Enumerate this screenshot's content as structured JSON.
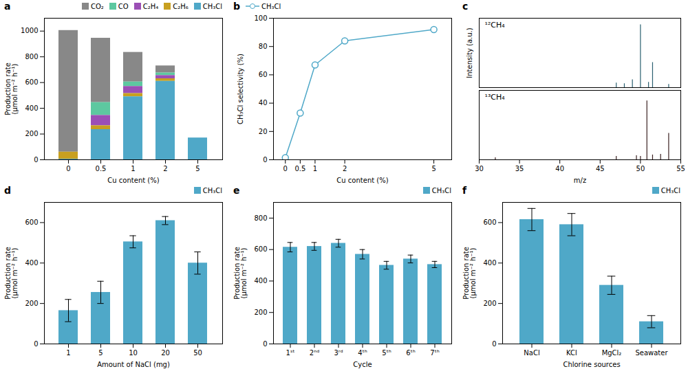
{
  "chart_data": [
    {
      "type": "bar",
      "stacked": true,
      "title": "a",
      "xlabel": "Cu content (%)",
      "ylabel": "Production rate\n(μmol m⁻² h⁻¹)",
      "categories": [
        "0",
        "0.5",
        "1",
        "2",
        "5"
      ],
      "series": [
        {
          "name": "CO₂",
          "color": "#888888",
          "values": [
            945,
            500,
            230,
            55,
            0
          ]
        },
        {
          "name": "CO",
          "color": "#5DC8A0",
          "values": [
            0,
            100,
            35,
            20,
            0
          ]
        },
        {
          "name": "C₂H₄",
          "color": "#9B4FB5",
          "values": [
            0,
            80,
            55,
            25,
            0
          ]
        },
        {
          "name": "C₂H₆",
          "color": "#C8A020",
          "values": [
            55,
            30,
            25,
            20,
            0
          ]
        },
        {
          "name": "CH₃Cl",
          "color": "#4FA8C8",
          "values": [
            5,
            235,
            490,
            610,
            170
          ]
        }
      ],
      "ylim": [
        0,
        1100
      ],
      "yticks": [
        0,
        200,
        400,
        600,
        800,
        1000
      ],
      "legend": "upper right"
    },
    {
      "type": "line",
      "title": "b",
      "xlabel": "Cu content (%)",
      "ylabel": "CH₃Cl selectivity (%)",
      "x": [
        0,
        0.5,
        1,
        2,
        5
      ],
      "series": [
        {
          "name": "CH₃Cl",
          "color": "#4FA8C8",
          "marker": "circle",
          "values": [
            1.5,
            33,
            67,
            84,
            92
          ]
        }
      ],
      "xlim": [
        -0.4,
        5.6
      ],
      "xticks": [
        0,
        0.5,
        1,
        2,
        5
      ],
      "ylim": [
        0,
        100
      ],
      "yticks": [
        0,
        20,
        40,
        60,
        80,
        100
      ],
      "legend": "upper left"
    },
    {
      "type": "stem",
      "title": "c",
      "ylabel": "Intensity (a.u.)",
      "x": [
        47.0,
        48.0,
        49.0,
        50.0,
        51.0,
        51.5,
        53.5
      ],
      "values": [
        0.07,
        0.06,
        0.12,
        0.95,
        0.08,
        0.38,
        0.05
      ],
      "color": "#2A6070",
      "annotations": [
        "¹²CH₄"
      ],
      "xlim": [
        30,
        55
      ],
      "ylim": [
        0,
        1.05
      ],
      "tick_labels": false
    },
    {
      "type": "stem",
      "xlabel": "m/z",
      "x": [
        32.0,
        47.0,
        49.5,
        50.0,
        50.8,
        51.5,
        52.5,
        53.5
      ],
      "values": [
        0.03,
        0.05,
        0.06,
        0.05,
        0.85,
        0.07,
        0.08,
        0.38
      ],
      "color": "#3A2020",
      "annotations": [
        "¹³CH₄"
      ],
      "xlim": [
        30,
        55
      ],
      "xticks": [
        30,
        35,
        40,
        45,
        50,
        55
      ],
      "ylim": [
        0,
        1.0
      ],
      "tick_labels": "x"
    },
    {
      "type": "bar",
      "title": "d",
      "xlabel": "Amount of NaCl (mg)",
      "ylabel": "Production rate\n(μmol m⁻² h⁻¹)",
      "categories": [
        "1",
        "5",
        "10",
        "20",
        "50"
      ],
      "series": [
        {
          "name": "CH₃Cl",
          "color": "#4FA8C8",
          "values": [
            165,
            255,
            505,
            610,
            400
          ],
          "errors": [
            55,
            55,
            30,
            20,
            55
          ]
        }
      ],
      "ylim": [
        0,
        700
      ],
      "yticks": [
        0,
        200,
        400,
        600
      ],
      "legend": "upper right"
    },
    {
      "type": "bar",
      "title": "e",
      "xlabel": "Cycle",
      "ylabel": "Production rate\n(μmol m⁻² h⁻¹)",
      "categories": [
        "1ˢᵗ",
        "2ⁿᵈ",
        "3ʳᵈ",
        "4ᵗʰ",
        "5ᵗʰ",
        "6ᵗʰ",
        "7ᵗʰ"
      ],
      "series": [
        {
          "name": "CH₃Cl",
          "color": "#4FA8C8",
          "values": [
            615,
            620,
            640,
            570,
            500,
            540,
            505
          ],
          "errors": [
            30,
            25,
            25,
            30,
            25,
            25,
            20
          ]
        }
      ],
      "ylim": [
        0,
        900
      ],
      "yticks": [
        0,
        200,
        400,
        600,
        800
      ],
      "legend": "upper right"
    },
    {
      "type": "bar",
      "title": "f",
      "xlabel": "Chlorine sources",
      "ylabel": "Production rate\n(μmol m⁻² h⁻¹)",
      "categories": [
        "NaCl",
        "KCl",
        "MgCl₂",
        "Seawater"
      ],
      "series": [
        {
          "name": "CH₃Cl",
          "color": "#4FA8C8",
          "values": [
            615,
            590,
            290,
            110
          ],
          "errors": [
            55,
            55,
            45,
            30
          ]
        }
      ],
      "ylim": [
        0,
        700
      ],
      "yticks": [
        0,
        200,
        400,
        600
      ],
      "legend": "upper right"
    }
  ]
}
